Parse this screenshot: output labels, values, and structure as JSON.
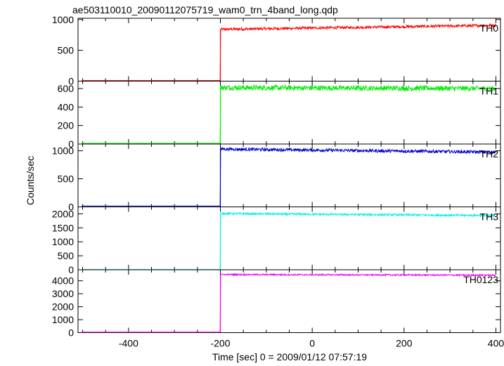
{
  "chart_data": {
    "type": "line",
    "title": "ae503110010_20090112075719_wam0_trn_4band_long.qdp",
    "xlabel": "Time [sec] 0 = 2009/01/12 07:57:19",
    "ylabel": "Counts/sec",
    "xlim": [
      -510,
      410
    ],
    "x_ticks": [
      -400,
      -200,
      0,
      200,
      400
    ],
    "step_time": -200,
    "panels": [
      {
        "name": "TH0",
        "color": "#ff0000",
        "ylim": [
          0,
          1020
        ],
        "y_ticks": [
          0,
          500,
          1000
        ],
        "before": 10,
        "after_start": 840,
        "after_end": 905,
        "noise": 22
      },
      {
        "name": "TH1",
        "color": "#00ee00",
        "ylim": [
          0,
          680
        ],
        "y_ticks": [
          0,
          200,
          400,
          600
        ],
        "before": 8,
        "after_start": 610,
        "after_end": 600,
        "noise": 28
      },
      {
        "name": "TH2",
        "color": "#0000cc",
        "ylim": [
          0,
          1120
        ],
        "y_ticks": [
          0,
          500,
          1000
        ],
        "before": 15,
        "after_start": 1030,
        "after_end": 975,
        "noise": 28
      },
      {
        "name": "TH3",
        "color": "#00eeee",
        "ylim": [
          0,
          2250
        ],
        "y_ticks": [
          0,
          500,
          1000,
          1500,
          2000
        ],
        "before": 10,
        "after_start": 2010,
        "after_end": 1940,
        "noise": 35
      },
      {
        "name": "TH0123",
        "color": "#ee00ee",
        "ylim": [
          0,
          4850
        ],
        "y_ticks": [
          0,
          1000,
          2000,
          3000,
          4000
        ],
        "before": 40,
        "after_start": 4480,
        "after_end": 4430,
        "noise": 55
      }
    ]
  }
}
